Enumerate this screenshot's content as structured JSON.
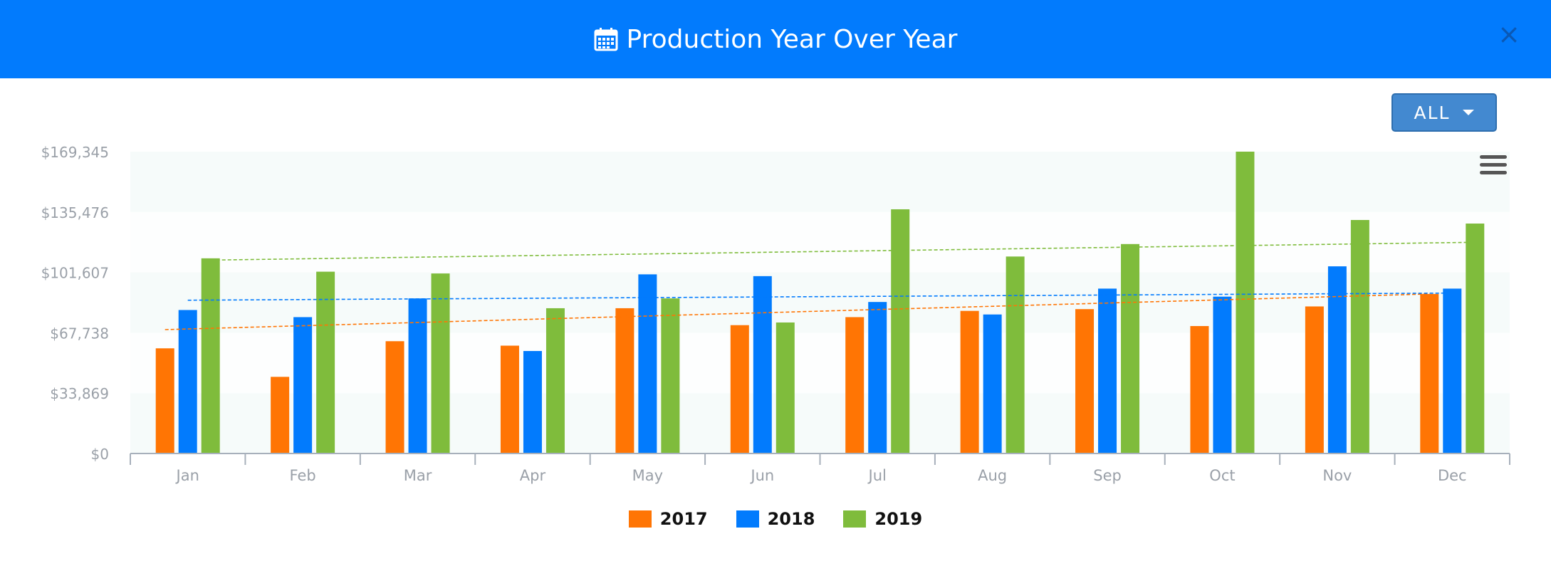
{
  "header": {
    "title": "Production Year Over Year",
    "close_label": "×",
    "icon": "calendar-icon"
  },
  "filter": {
    "selected": "ALL"
  },
  "menu": {
    "icon": "hamburger-menu-icon"
  },
  "colors": {
    "header_bg": "#027bfd",
    "series": [
      "#ff7504",
      "#027bfd",
      "#7fbc3c"
    ]
  },
  "chart_data": {
    "type": "bar",
    "title": "",
    "xlabel": "",
    "ylabel": "",
    "categories": [
      "Jan",
      "Feb",
      "Mar",
      "Apr",
      "May",
      "Jun",
      "Jul",
      "Aug",
      "Sep",
      "Oct",
      "Nov",
      "Dec"
    ],
    "y_ticks": [
      "$0",
      "$33,869",
      "$67,738",
      "$101,607",
      "$135,476",
      "$169,345"
    ],
    "ylim": [
      0,
      169345
    ],
    "grid": "alternating bands",
    "legend_position": "bottom-center",
    "series": [
      {
        "name": "2017",
        "values": [
          59000,
          43000,
          63000,
          60500,
          81500,
          72000,
          76500,
          80000,
          81000,
          71500,
          82500,
          89500
        ],
        "trend": [
          69500,
          89500
        ]
      },
      {
        "name": "2018",
        "values": [
          80500,
          76500,
          87000,
          57500,
          100500,
          99500,
          85000,
          78000,
          92500,
          88000,
          105000,
          92500
        ],
        "trend": [
          86000,
          90000
        ]
      },
      {
        "name": "2019",
        "values": [
          109500,
          102000,
          101000,
          81500,
          87000,
          73500,
          137000,
          110500,
          117500,
          169345,
          131000,
          129000
        ],
        "trend": [
          108500,
          118500
        ]
      }
    ]
  }
}
